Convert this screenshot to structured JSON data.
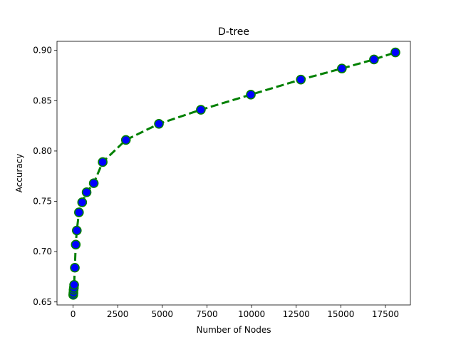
{
  "chart_data": {
    "type": "line",
    "title": "D-tree",
    "xlabel": "Number of Nodes",
    "ylabel": "Accuracy",
    "xlim": [
      -900,
      18900
    ],
    "ylim": [
      0.647,
      0.909
    ],
    "xticks": [
      0,
      2500,
      5000,
      7500,
      10000,
      12500,
      15000,
      17500
    ],
    "xtick_labels": [
      "0",
      "2500",
      "5000",
      "7500",
      "10000",
      "12500",
      "15000",
      "17500"
    ],
    "yticks": [
      0.65,
      0.7,
      0.75,
      0.8,
      0.85,
      0.9
    ],
    "ytick_labels": [
      "0.65",
      "0.70",
      "0.75",
      "0.80",
      "0.85",
      "0.90"
    ],
    "grid": false,
    "series": [
      {
        "name": "D-tree",
        "line_color": "#008000",
        "line_style": "dashed",
        "marker_fill": "#0000ff",
        "marker_edge": "#008000",
        "x": [
          10,
          20,
          30,
          45,
          60,
          100,
          150,
          210,
          330,
          510,
          760,
          1160,
          1660,
          2960,
          4810,
          7160,
          9960,
          12760,
          15060,
          16860,
          18060
        ],
        "y": [
          0.657,
          0.659,
          0.662,
          0.664,
          0.667,
          0.684,
          0.707,
          0.721,
          0.739,
          0.749,
          0.759,
          0.768,
          0.789,
          0.811,
          0.827,
          0.841,
          0.856,
          0.871,
          0.882,
          0.891,
          0.898
        ]
      }
    ]
  }
}
